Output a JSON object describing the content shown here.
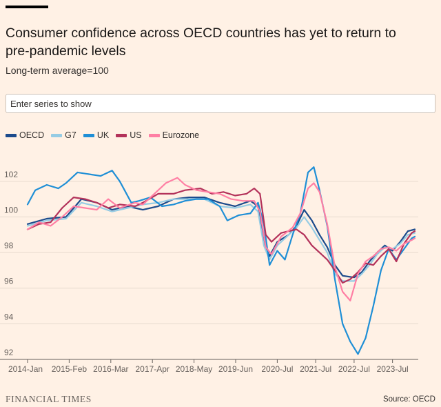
{
  "header": {
    "title": "Consumer confidence across OECD countries has yet to return to pre-pandemic levels",
    "subtitle": "Long-term average=100"
  },
  "search": {
    "placeholder": "Enter series to show"
  },
  "footer": {
    "brand": "FINANCIAL TIMES",
    "source": "Source: OECD"
  },
  "chart_data": {
    "type": "line",
    "title": "Consumer confidence across OECD countries has yet to return to pre-pandemic levels",
    "subtitle": "Long-term average=100",
    "xlabel": "",
    "ylabel": "",
    "ylim": [
      92,
      103
    ],
    "yticks": [
      92,
      94,
      96,
      98,
      100,
      102
    ],
    "xlim": [
      2014.0,
      2024.17
    ],
    "xticks": [
      {
        "x": 2014.0,
        "label": "2014-Jan"
      },
      {
        "x": 2015.083,
        "label": "2015-Feb"
      },
      {
        "x": 2016.167,
        "label": "2016-Mar"
      },
      {
        "x": 2017.25,
        "label": "2017-Apr"
      },
      {
        "x": 2018.333,
        "label": "2018-May"
      },
      {
        "x": 2019.417,
        "label": "2019-Jun"
      },
      {
        "x": 2020.5,
        "label": "2020-Jul"
      },
      {
        "x": 2021.5,
        "label": "2021-Jul"
      },
      {
        "x": 2022.5,
        "label": "2022-Jul"
      },
      {
        "x": 2023.5,
        "label": "2023-Jul"
      }
    ],
    "series": [
      {
        "name": "OECD",
        "color": "#1c4b8c",
        "x": [
          2014.0,
          2014.5,
          2015.0,
          2015.4,
          2015.8,
          2016.2,
          2016.6,
          2017.0,
          2017.4,
          2017.8,
          2018.2,
          2018.6,
          2019.0,
          2019.4,
          2019.8,
          2020.0,
          2020.15,
          2020.3,
          2020.5,
          2020.8,
          2021.0,
          2021.2,
          2021.4,
          2021.6,
          2021.8,
          2022.0,
          2022.2,
          2022.5,
          2022.7,
          2022.9,
          2023.1,
          2023.3,
          2023.5,
          2023.7,
          2023.9,
          2024.08
        ],
        "values": [
          99.6,
          99.9,
          100.0,
          101.0,
          100.8,
          100.4,
          100.6,
          100.4,
          100.6,
          101.0,
          101.1,
          101.1,
          100.8,
          100.6,
          100.9,
          100.6,
          98.6,
          97.8,
          98.6,
          99.0,
          99.5,
          100.4,
          99.8,
          99.0,
          98.3,
          97.3,
          96.7,
          96.6,
          96.9,
          97.5,
          98.0,
          98.4,
          98.1,
          98.6,
          99.2,
          99.3
        ]
      },
      {
        "name": "G7",
        "color": "#96cce4",
        "x": [
          2014.0,
          2014.5,
          2015.0,
          2015.4,
          2015.8,
          2016.2,
          2016.6,
          2017.0,
          2017.4,
          2017.8,
          2018.2,
          2018.6,
          2019.0,
          2019.4,
          2019.8,
          2020.0,
          2020.15,
          2020.3,
          2020.5,
          2020.8,
          2021.0,
          2021.2,
          2021.4,
          2021.6,
          2021.8,
          2022.0,
          2022.2,
          2022.5,
          2022.7,
          2022.9,
          2023.1,
          2023.3,
          2023.5,
          2023.7,
          2023.9,
          2024.08
        ],
        "values": [
          99.5,
          99.8,
          99.9,
          100.8,
          100.6,
          100.3,
          100.5,
          100.7,
          100.8,
          101.0,
          101.0,
          101.0,
          100.6,
          100.5,
          100.7,
          100.3,
          98.4,
          97.6,
          98.4,
          99.0,
          99.4,
          100.0,
          99.4,
          98.7,
          98.0,
          96.8,
          96.4,
          96.4,
          96.8,
          97.3,
          97.9,
          98.3,
          98.2,
          98.5,
          99.0,
          99.1
        ]
      },
      {
        "name": "UK",
        "color": "#1f8fd6",
        "x": [
          2014.0,
          2014.2,
          2014.5,
          2014.8,
          2015.0,
          2015.3,
          2015.6,
          2015.9,
          2016.2,
          2016.4,
          2016.55,
          2016.7,
          2016.9,
          2017.2,
          2017.5,
          2017.8,
          2018.1,
          2018.4,
          2018.7,
          2019.0,
          2019.2,
          2019.5,
          2019.8,
          2020.0,
          2020.15,
          2020.3,
          2020.5,
          2020.7,
          2020.9,
          2021.1,
          2021.3,
          2021.45,
          2021.6,
          2021.8,
          2022.0,
          2022.2,
          2022.4,
          2022.6,
          2022.8,
          2023.0,
          2023.2,
          2023.4,
          2023.6,
          2023.8,
          2024.0,
          2024.08
        ],
        "values": [
          100.7,
          101.5,
          101.8,
          101.6,
          101.9,
          102.5,
          102.4,
          102.3,
          102.6,
          102.0,
          101.4,
          100.8,
          100.9,
          101.1,
          100.6,
          100.7,
          100.9,
          101.0,
          101.0,
          100.6,
          99.8,
          100.1,
          100.2,
          100.8,
          99.6,
          97.3,
          98.1,
          97.6,
          99.0,
          100.2,
          102.5,
          102.8,
          101.5,
          99.5,
          96.5,
          94.0,
          93.0,
          92.3,
          93.2,
          95.0,
          97.0,
          98.2,
          97.6,
          98.2,
          98.8,
          98.9
        ]
      },
      {
        "name": "US",
        "color": "#b3325a",
        "x": [
          2014.0,
          2014.3,
          2014.6,
          2014.9,
          2015.2,
          2015.5,
          2015.8,
          2016.1,
          2016.4,
          2016.8,
          2017.0,
          2017.4,
          2017.8,
          2018.1,
          2018.5,
          2018.8,
          2019.1,
          2019.4,
          2019.7,
          2019.9,
          2020.05,
          2020.2,
          2020.35,
          2020.6,
          2020.8,
          2021.0,
          2021.2,
          2021.4,
          2021.6,
          2021.8,
          2022.0,
          2022.2,
          2022.4,
          2022.6,
          2022.8,
          2023.0,
          2023.2,
          2023.4,
          2023.6,
          2023.8,
          2024.0,
          2024.08
        ],
        "values": [
          99.3,
          99.6,
          99.7,
          100.5,
          101.1,
          101.0,
          100.8,
          100.5,
          100.7,
          100.6,
          100.8,
          101.3,
          101.3,
          101.5,
          101.6,
          101.3,
          101.4,
          101.2,
          101.3,
          101.6,
          101.3,
          99.0,
          98.6,
          99.1,
          99.2,
          99.3,
          99.0,
          98.4,
          98.0,
          97.6,
          97.0,
          96.3,
          96.5,
          96.9,
          97.4,
          97.3,
          97.8,
          98.2,
          97.5,
          98.5,
          99.1,
          99.2
        ]
      },
      {
        "name": "Eurozone",
        "color": "#ff7fa4",
        "x": [
          2014.0,
          2014.3,
          2014.6,
          2014.9,
          2015.2,
          2015.5,
          2015.8,
          2016.1,
          2016.4,
          2016.8,
          2017.0,
          2017.3,
          2017.6,
          2017.9,
          2018.1,
          2018.4,
          2018.7,
          2019.0,
          2019.3,
          2019.6,
          2019.9,
          2020.05,
          2020.2,
          2020.35,
          2020.6,
          2020.9,
          2021.1,
          2021.3,
          2021.45,
          2021.6,
          2021.8,
          2022.0,
          2022.2,
          2022.4,
          2022.6,
          2022.8,
          2023.0,
          2023.2,
          2023.4,
          2023.6,
          2023.8,
          2024.0,
          2024.08
        ],
        "values": [
          99.3,
          99.7,
          99.5,
          100.0,
          100.6,
          100.5,
          100.4,
          101.0,
          100.5,
          100.8,
          100.7,
          101.3,
          101.9,
          102.2,
          101.8,
          101.5,
          101.4,
          101.3,
          101.0,
          100.9,
          100.9,
          100.3,
          98.3,
          97.9,
          98.9,
          99.4,
          100.2,
          101.6,
          101.9,
          101.4,
          99.6,
          97.2,
          95.8,
          95.3,
          96.8,
          97.5,
          97.8,
          98.2,
          98.3,
          98.1,
          98.5,
          98.7,
          98.8
        ]
      }
    ]
  }
}
